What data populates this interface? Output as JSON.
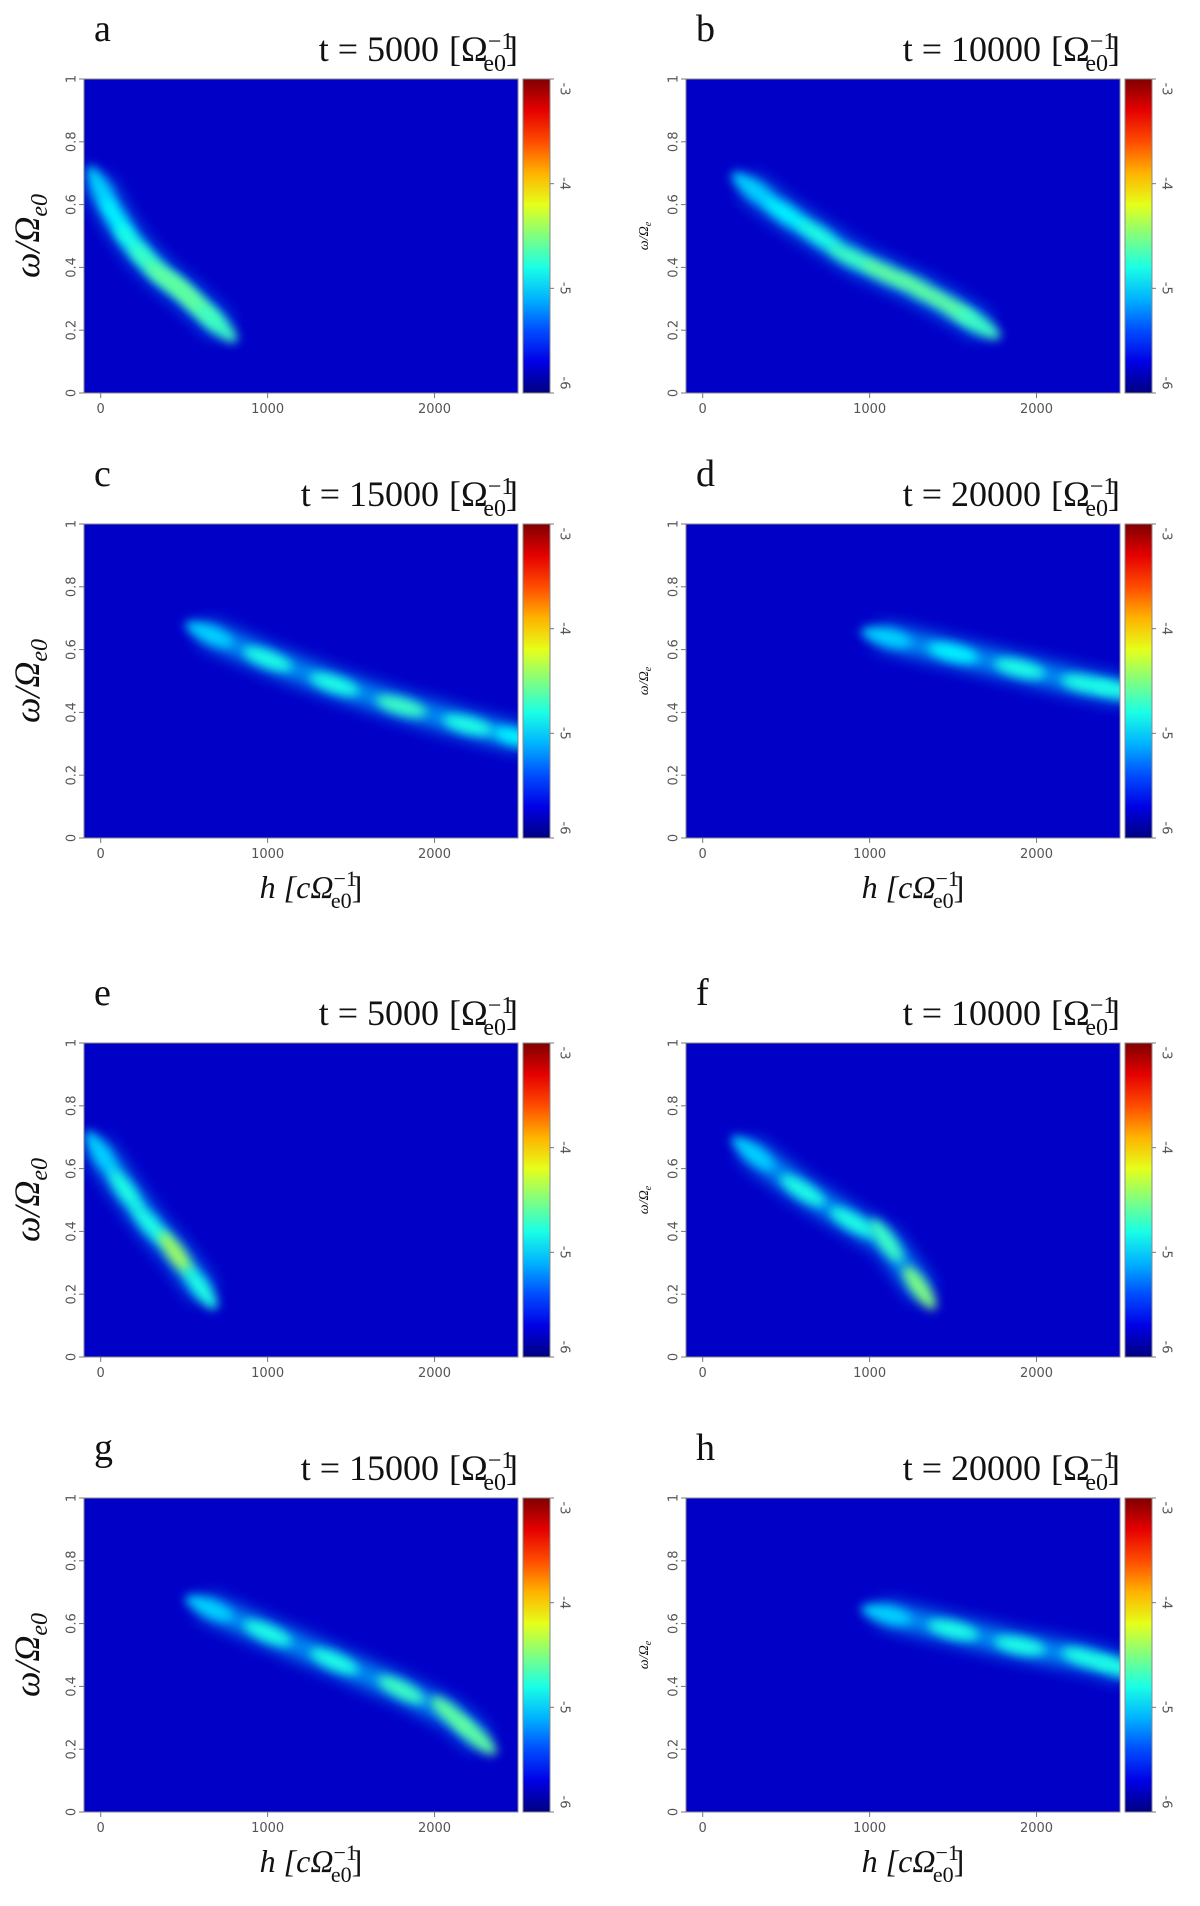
{
  "chart_data": [
    {
      "type": "heatmap",
      "panel": "a",
      "title": "t =  5000",
      "title_unit": {
        "open": "[Ω",
        "sub": "e0",
        "sup": "−1",
        "close": "]"
      },
      "ylabel": {
        "main": "ω/Ω",
        "sub": "e0"
      },
      "xlim": [
        -100,
        2500
      ],
      "xticks": [
        0,
        1000,
        2000
      ],
      "ylim": [
        0,
        1
      ],
      "yticks": [
        0,
        0.2,
        0.4,
        0.6,
        0.8,
        1
      ],
      "clim": [
        -6,
        -3
      ],
      "cticks": [
        -6,
        -5,
        -4,
        -3
      ],
      "ridge_h": [
        0,
        100,
        200,
        300,
        400,
        500,
        600,
        700
      ],
      "ridge_omega": [
        0.65,
        0.55,
        0.47,
        0.41,
        0.36,
        0.32,
        0.27,
        0.22
      ],
      "ridge_level": [
        -5.0,
        -4.9,
        -4.8,
        -4.7,
        -4.6,
        -4.6,
        -4.6,
        -4.7
      ]
    },
    {
      "type": "heatmap",
      "panel": "b",
      "title": "t = 10000",
      "title_unit": {
        "open": "[Ω",
        "sub": "e0",
        "sup": "−1",
        "close": "]"
      },
      "ylabel": {
        "main": "ω/Ω",
        "sub": "e"
      },
      "xlim": [
        -100,
        2500
      ],
      "xticks": [
        0,
        1000,
        2000
      ],
      "ylim": [
        0,
        1
      ],
      "yticks": [
        0,
        0.2,
        0.4,
        0.6,
        0.8,
        1
      ],
      "clim": [
        -6,
        -3
      ],
      "cticks": [
        -6,
        -5,
        -4,
        -3
      ],
      "ridge_h": [
        300,
        500,
        700,
        900,
        1100,
        1300,
        1500,
        1650
      ],
      "ridge_omega": [
        0.65,
        0.57,
        0.5,
        0.43,
        0.38,
        0.33,
        0.27,
        0.22
      ],
      "ridge_level": [
        -5.0,
        -4.9,
        -4.8,
        -4.7,
        -4.6,
        -4.6,
        -4.6,
        -4.7
      ]
    },
    {
      "type": "heatmap",
      "panel": "c",
      "title": "t = 15000",
      "title_unit": {
        "open": "[Ω",
        "sub": "e0",
        "sup": "−1",
        "close": "]"
      },
      "ylabel": {
        "main": "ω/Ω",
        "sub": "e0"
      },
      "xlabel": {
        "main": "h [cΩ",
        "sub": "e0",
        "sup": "−1",
        "close": "]"
      },
      "xlim": [
        -100,
        2500
      ],
      "xticks": [
        0,
        1000,
        2000
      ],
      "ylim": [
        0,
        1
      ],
      "yticks": [
        0,
        0.2,
        0.4,
        0.6,
        0.8,
        1
      ],
      "clim": [
        -6,
        -3
      ],
      "cticks": [
        -6,
        -5,
        -4,
        -3
      ],
      "ridge_h": [
        650,
        1000,
        1400,
        1800,
        2200,
        2500
      ],
      "ridge_omega": [
        0.65,
        0.57,
        0.49,
        0.42,
        0.36,
        0.32
      ],
      "ridge_level": [
        -5.0,
        -4.8,
        -4.8,
        -4.7,
        -4.8,
        -4.9
      ]
    },
    {
      "type": "heatmap",
      "panel": "d",
      "title": "t = 20000",
      "title_unit": {
        "open": "[Ω",
        "sub": "e0",
        "sup": "−1",
        "close": "]"
      },
      "ylabel": {
        "main": "ω/Ω",
        "sub": "e"
      },
      "xlabel": {
        "main": "h [cΩ",
        "sub": "e0",
        "sup": "−1",
        "close": "]"
      },
      "xlim": [
        -100,
        2500
      ],
      "xticks": [
        0,
        1000,
        2000
      ],
      "ylim": [
        0,
        1
      ],
      "yticks": [
        0,
        0.2,
        0.4,
        0.6,
        0.8,
        1
      ],
      "clim": [
        -6,
        -3
      ],
      "cticks": [
        -6,
        -5,
        -4,
        -3
      ],
      "ridge_h": [
        1100,
        1500,
        1900,
        2300,
        2500
      ],
      "ridge_omega": [
        0.64,
        0.59,
        0.54,
        0.49,
        0.47
      ],
      "ridge_level": [
        -5.0,
        -4.9,
        -4.8,
        -4.8,
        -4.8
      ]
    },
    {
      "type": "heatmap",
      "panel": "e",
      "title": "t =  5000",
      "title_unit": {
        "open": "[Ω",
        "sub": "e0",
        "sup": "−1",
        "close": "]"
      },
      "ylabel": {
        "main": "ω/Ω",
        "sub": "e0"
      },
      "xlim": [
        -100,
        2500
      ],
      "xticks": [
        0,
        1000,
        2000
      ],
      "ylim": [
        0,
        1
      ],
      "yticks": [
        0,
        0.2,
        0.4,
        0.6,
        0.8,
        1
      ],
      "clim": [
        -6,
        -3
      ],
      "cticks": [
        -6,
        -5,
        -4,
        -3
      ],
      "ridge_h": [
        0,
        150,
        300,
        450,
        600
      ],
      "ridge_omega": [
        0.65,
        0.53,
        0.42,
        0.33,
        0.22
      ],
      "ridge_level": [
        -5.0,
        -4.8,
        -4.8,
        -4.4,
        -4.8
      ]
    },
    {
      "type": "heatmap",
      "panel": "f",
      "title": "t = 10000",
      "title_unit": {
        "open": "[Ω",
        "sub": "e0",
        "sup": "−1",
        "close": "]"
      },
      "ylabel": {
        "main": "ω/Ω",
        "sub": "e"
      },
      "xlim": [
        -100,
        2500
      ],
      "xticks": [
        0,
        1000,
        2000
      ],
      "ylim": [
        0,
        1
      ],
      "yticks": [
        0,
        0.2,
        0.4,
        0.6,
        0.8,
        1
      ],
      "clim": [
        -6,
        -3
      ],
      "cticks": [
        -6,
        -5,
        -4,
        -3
      ],
      "ridge_h": [
        300,
        600,
        900,
        1100,
        1300
      ],
      "ridge_omega": [
        0.65,
        0.53,
        0.43,
        0.37,
        0.22
      ],
      "ridge_level": [
        -5.0,
        -4.8,
        -4.8,
        -4.7,
        -4.5
      ]
    },
    {
      "type": "heatmap",
      "panel": "g",
      "title": "t = 15000",
      "title_unit": {
        "open": "[Ω",
        "sub": "e0",
        "sup": "−1",
        "close": "]"
      },
      "ylabel": {
        "main": "ω/Ω",
        "sub": "e0"
      },
      "xlabel": {
        "main": "h [cΩ",
        "sub": "e0",
        "sup": "−1",
        "close": "]"
      },
      "xlim": [
        -100,
        2500
      ],
      "xticks": [
        0,
        1000,
        2000
      ],
      "ylim": [
        0,
        1
      ],
      "yticks": [
        0,
        0.2,
        0.4,
        0.6,
        0.8,
        1
      ],
      "clim": [
        -6,
        -3
      ],
      "cticks": [
        -6,
        -5,
        -4,
        -3
      ],
      "ridge_h": [
        650,
        1000,
        1400,
        1800,
        2100,
        2250
      ],
      "ridge_omega": [
        0.65,
        0.57,
        0.48,
        0.39,
        0.31,
        0.24
      ],
      "ridge_level": [
        -5.0,
        -4.8,
        -4.8,
        -4.7,
        -4.6,
        -4.6
      ]
    },
    {
      "type": "heatmap",
      "panel": "h",
      "title": "t = 20000",
      "title_unit": {
        "open": "[Ω",
        "sub": "e0",
        "sup": "−1",
        "close": "]"
      },
      "ylabel": {
        "main": "ω/Ω",
        "sub": "e"
      },
      "xlabel": {
        "main": "h [cΩ",
        "sub": "e0",
        "sup": "−1",
        "close": "]"
      },
      "xlim": [
        -100,
        2500
      ],
      "xticks": [
        0,
        1000,
        2000
      ],
      "ylim": [
        0,
        1
      ],
      "yticks": [
        0,
        0.2,
        0.4,
        0.6,
        0.8,
        1
      ],
      "clim": [
        -6,
        -3
      ],
      "cticks": [
        -6,
        -5,
        -4,
        -3
      ],
      "ridge_h": [
        1100,
        1500,
        1900,
        2300,
        2500
      ],
      "ridge_omega": [
        0.63,
        0.58,
        0.53,
        0.49,
        0.46
      ],
      "ridge_level": [
        -5.0,
        -4.8,
        -4.8,
        -4.8,
        -4.8
      ]
    }
  ]
}
